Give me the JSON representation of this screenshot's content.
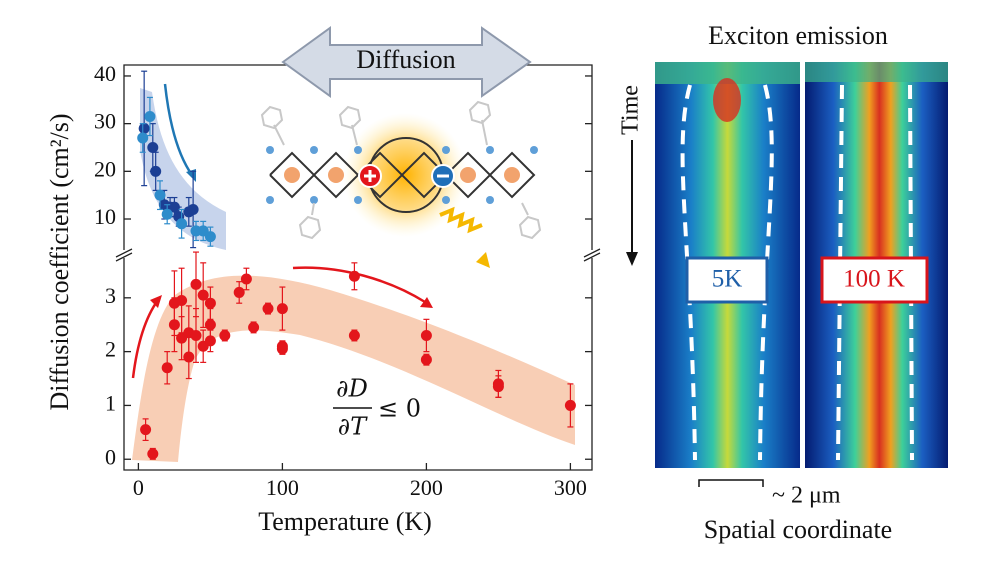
{
  "chart_data": {
    "type": "scatter",
    "xlabel": "Temperature (K)",
    "ylabel": "Diffusion coefficient  (cm²/s)",
    "xlim": [
      -10,
      315
    ],
    "xticks": [
      0,
      100,
      200,
      300
    ],
    "ylim": [
      -0.2,
      3.74
    ],
    "yticks": [
      0,
      1,
      2,
      3
    ],
    "ylim_upper": [
      3.5,
      42.3
    ],
    "yticks_upper": [
      10,
      20,
      30,
      40
    ],
    "series": [
      {
        "color": "#e3161c",
        "panel": "lower",
        "x": [
          5,
          10,
          20,
          25,
          25,
          30,
          30,
          35,
          35,
          40,
          40,
          45,
          45,
          50,
          50,
          50,
          60,
          70,
          75,
          80,
          90,
          100,
          100,
          100,
          150,
          150,
          200,
          200,
          250,
          250,
          300
        ],
        "values": [
          0.55,
          0.1,
          1.7,
          2.9,
          2.5,
          2.95,
          2.25,
          2.35,
          1.9,
          2.3,
          3.25,
          3.05,
          2.1,
          2.9,
          2.5,
          2.2,
          2.3,
          3.1,
          3.35,
          2.45,
          2.8,
          2.8,
          2.1,
          2.05,
          3.4,
          2.3,
          2.3,
          1.85,
          1.4,
          1.35,
          1.0
        ],
        "errors": [
          0.2,
          0.1,
          0.3,
          0.6,
          0.5,
          0.6,
          0.4,
          0.5,
          0.4,
          0.5,
          0.6,
          0.6,
          0.3,
          0.3,
          0.3,
          0.2,
          0.1,
          0.2,
          0.2,
          0.1,
          0.1,
          0.4,
          0.1,
          0.1,
          0.25,
          0.1,
          0.3,
          0.1,
          0.25,
          0.2,
          0.4
        ]
      },
      {
        "color": "#1c3f94",
        "panel": "upper",
        "x": [
          4,
          10,
          12,
          18,
          22,
          25,
          28,
          35,
          38
        ],
        "values": [
          29,
          25,
          20,
          13,
          12.5,
          12.5,
          10.5,
          11.5,
          12
        ],
        "errors": [
          12,
          5,
          4,
          3,
          2,
          2,
          2,
          3,
          8
        ]
      },
      {
        "color": "#2e8ccb",
        "panel": "upper",
        "x": [
          3,
          8,
          15,
          20,
          30,
          40,
          45,
          50
        ],
        "values": [
          27,
          31.5,
          15,
          11,
          9,
          7.5,
          7.5,
          6.3
        ],
        "errors": [
          3,
          4,
          3,
          2,
          3,
          2,
          2,
          2
        ]
      }
    ],
    "annotations": {
      "diffusion": "Diffusion",
      "numerator": "∂D",
      "denominator": "∂T",
      "relation": "≤ 0"
    }
  },
  "emission_panel": {
    "title": "Exciton emission",
    "time_label": "Time",
    "labels": [
      "5K",
      "100 K"
    ],
    "scale": "~ 2 μm",
    "xlabel": "Spatial coordinate"
  }
}
